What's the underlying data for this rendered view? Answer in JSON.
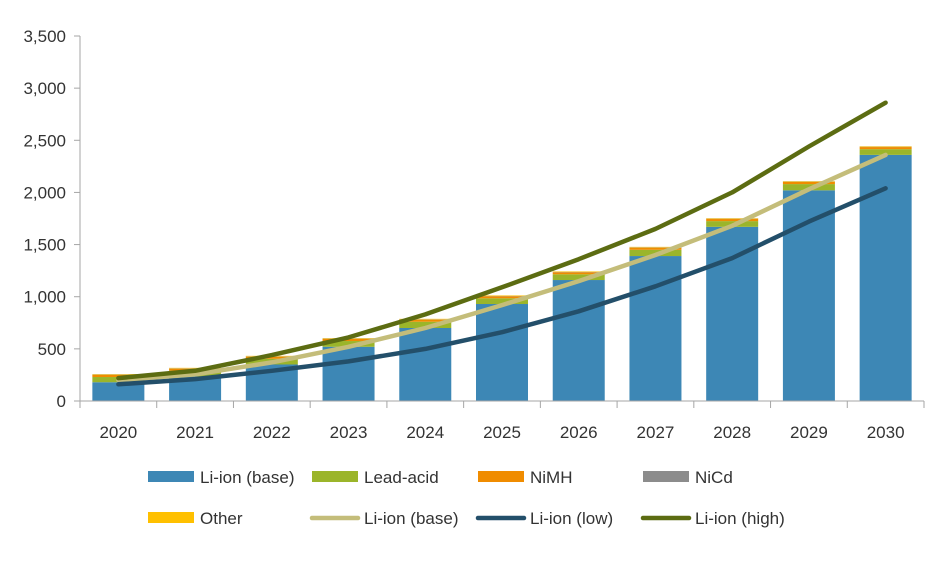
{
  "chart_data": {
    "type": "bar",
    "title": "",
    "xlabel": "",
    "ylabel": "",
    "ylim": [
      0,
      3500
    ],
    "yticks": [
      0,
      500,
      1000,
      1500,
      2000,
      2500,
      3000,
      3500
    ],
    "ytick_labels": [
      "0",
      "500",
      "1,000",
      "1,500",
      "2,000",
      "2,500",
      "3,000",
      "3,500"
    ],
    "grid": false,
    "legend_position": "bottom",
    "categories": [
      "2020",
      "2021",
      "2022",
      "2023",
      "2024",
      "2025",
      "2026",
      "2027",
      "2028",
      "2029",
      "2030"
    ],
    "stacked_bars": [
      {
        "name": "Li-ion (base)",
        "color": "#3D87B5",
        "values": [
          180,
          235,
          350,
          520,
          700,
          930,
          1160,
          1390,
          1670,
          2020,
          2360
        ]
      },
      {
        "name": "Lead-acid",
        "color": "#9BB52A",
        "values": [
          50,
          55,
          55,
          55,
          60,
          55,
          55,
          60,
          55,
          60,
          55
        ]
      },
      {
        "name": "NiMH",
        "color": "#F08C00",
        "values": [
          20,
          20,
          20,
          20,
          20,
          20,
          20,
          20,
          20,
          20,
          20
        ]
      },
      {
        "name": "NiCd",
        "color": "#8C8C8C",
        "values": [
          3,
          3,
          3,
          3,
          3,
          3,
          3,
          3,
          3,
          3,
          3
        ]
      },
      {
        "name": "Other",
        "color": "#FFC000",
        "values": [
          5,
          5,
          5,
          5,
          5,
          5,
          5,
          5,
          5,
          5,
          5
        ]
      }
    ],
    "lines": [
      {
        "name": "Li-ion (base)",
        "color": "#C4BD7A",
        "values": [
          200,
          255,
          370,
          520,
          700,
          920,
          1150,
          1400,
          1680,
          2030,
          2360
        ]
      },
      {
        "name": "Li-ion (low)",
        "color": "#234F6A",
        "values": [
          160,
          210,
          290,
          380,
          500,
          660,
          860,
          1100,
          1370,
          1720,
          2040
        ]
      },
      {
        "name": "Li-ion (high)",
        "color": "#5C6C12",
        "values": [
          220,
          290,
          440,
          610,
          830,
          1090,
          1360,
          1650,
          2000,
          2440,
          2860
        ]
      }
    ]
  }
}
